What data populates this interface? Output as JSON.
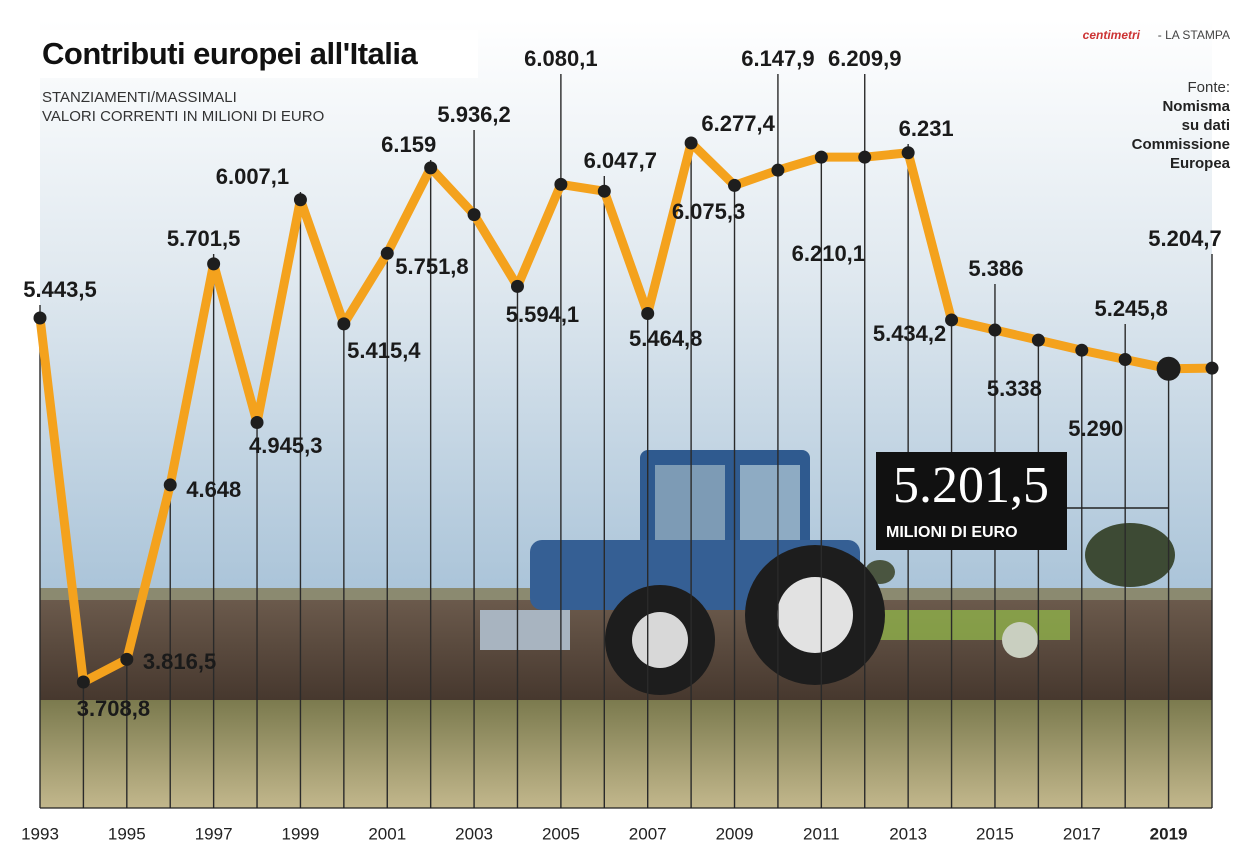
{
  "chart_data": {
    "type": "line",
    "title": "Contributi europei all'Italia",
    "subtitle": [
      "STANZIAMENTI/MASSIMALI",
      "VALORI CORRENTI IN MILIONI DI EURO"
    ],
    "credit": [
      "centimetri",
      "- LA STAMPA"
    ],
    "source": [
      "Fonte:",
      "Nomisma",
      "su dati",
      "Commissione",
      "Europea"
    ],
    "categories": [
      "1993",
      null,
      "1995",
      null,
      "1997",
      null,
      "1999",
      null,
      "2001",
      null,
      "2003",
      null,
      "2005",
      null,
      "2007",
      null,
      "2009",
      null,
      "2011",
      null,
      "2013",
      null,
      "2015",
      null,
      "2017",
      null,
      "2019",
      null
    ],
    "highlight": "2019",
    "annotation": "MILIONI DI EURO",
    "color": "#f4a21d",
    "values": [
      5443.5,
      3708.8,
      3816.5,
      4648,
      5701.5,
      4945.3,
      6007.1,
      5415.4,
      5751.8,
      6159,
      5936.2,
      5594.1,
      6080.1,
      6047.7,
      5464.8,
      6277.4,
      6075.3,
      6147.9,
      6210.1,
      6209.9,
      6231,
      5434.2,
      5386,
      5338,
      5290,
      5245.8,
      5201.5,
      5204.7
    ],
    "value_labels": [
      "5.443,5",
      "3.708,8",
      "3.816,5",
      "4.648",
      "5.701,5",
      "4.945,3",
      "6.007,1",
      "5.415,4",
      "5.751,8",
      "6.159",
      "5.936,2",
      "5.594,1",
      "6.080,1",
      "6.047,7",
      "5.464,8",
      "6.277,4",
      "6.075,3",
      "6.147,9",
      "6.210,1",
      "6.209,9",
      "6.231",
      "5.434,2",
      "5.386",
      "5.338",
      "5.290",
      "5.245,8",
      "5.201,5",
      "5.204,7"
    ]
  }
}
